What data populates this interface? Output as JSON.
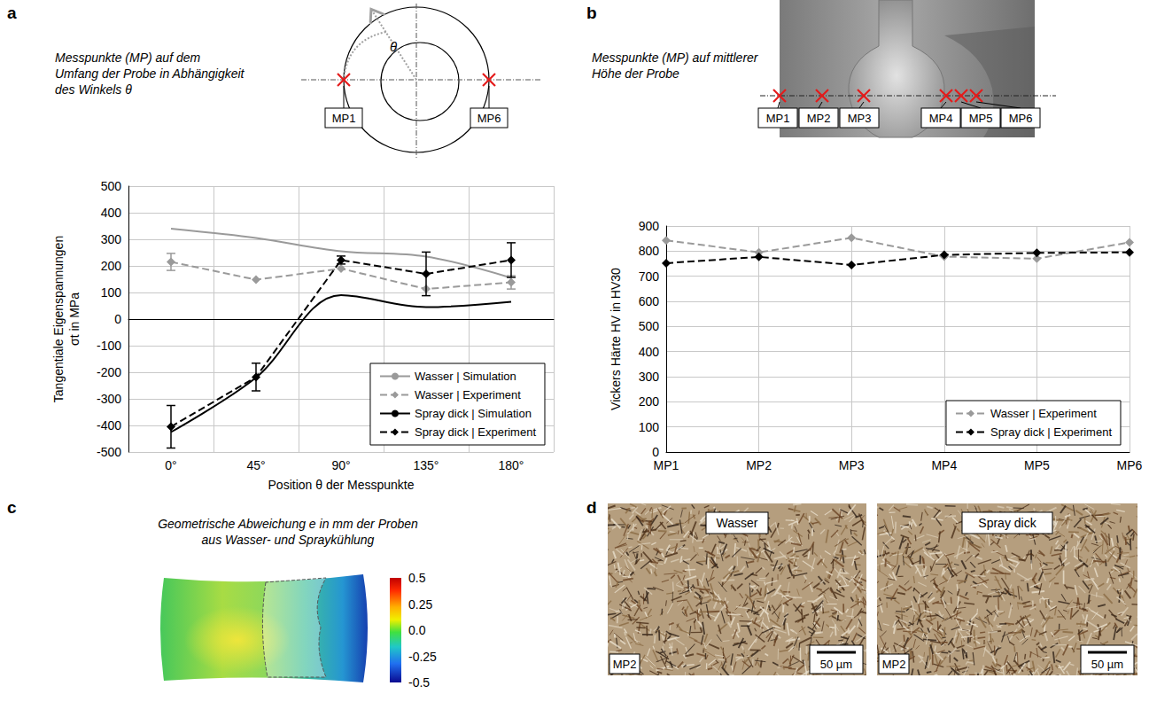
{
  "chart_data": [
    {
      "type": "line",
      "panel_label": "a",
      "caption": "Messpunkte (MP) auf dem Umfang der Probe in Abhängigkeit des Winkels θ",
      "diagram_labels": [
        "θ",
        "MP1",
        "MP6"
      ],
      "x_label": "Position θ der Messpunkte",
      "y_label": "Tangentiale Eigenspannungen σt in MPa",
      "categories": [
        "0°",
        "45°",
        "90°",
        "135°",
        "180°"
      ],
      "series": [
        {
          "name": "Wasser | Simulation",
          "color": "#9a9a9a",
          "marker": "none",
          "line_style": "solid",
          "values": [
            340,
            305,
            255,
            235,
            155
          ]
        },
        {
          "name": "Wasser | Experiment",
          "color": "#9a9a9a",
          "marker": "diamond",
          "line_style": "dashed",
          "values": [
            215,
            148,
            190,
            113,
            138
          ],
          "errors": [
            32,
            null,
            null,
            null,
            25
          ]
        },
        {
          "name": "Spray dick | Simulation",
          "color": "#000000",
          "marker": "none",
          "line_style": "solid",
          "values": [
            -425,
            -220,
            90,
            45,
            65
          ]
        },
        {
          "name": "Spray dick | Experiment",
          "color": "#000000",
          "marker": "diamond",
          "line_style": "dashed",
          "values": [
            -405,
            -218,
            222,
            170,
            222
          ],
          "errors": [
            80,
            52,
            15,
            82,
            65
          ]
        }
      ],
      "ylim": [
        -500,
        500
      ],
      "yticks": [
        -500,
        -400,
        -300,
        -200,
        -100,
        0,
        100,
        200,
        300,
        400,
        500
      ],
      "grid": true,
      "legend": "lower right"
    },
    {
      "type": "line",
      "panel_label": "b",
      "caption": "Messpunkte (MP) auf mittlerer Höhe der Probe",
      "diagram_labels": [
        "MP1",
        "MP2",
        "MP3",
        "MP4",
        "MP5",
        "MP6"
      ],
      "y_label": "Vickers Härte HV in HV30",
      "categories": [
        "MP1",
        "MP2",
        "MP3",
        "MP4",
        "MP5",
        "MP6"
      ],
      "series": [
        {
          "name": "Wasser | Experiment",
          "color": "#9a9a9a",
          "marker": "diamond",
          "line_style": "dashed",
          "values": [
            843,
            795,
            853,
            778,
            770,
            835
          ]
        },
        {
          "name": "Spray dick | Experiment",
          "color": "#000000",
          "marker": "diamond",
          "line_style": "dashed",
          "values": [
            752,
            777,
            745,
            785,
            793,
            795
          ]
        }
      ],
      "ylim": [
        0,
        900
      ],
      "yticks": [
        0,
        100,
        200,
        300,
        400,
        500,
        600,
        700,
        800,
        900
      ],
      "grid": true,
      "legend": "lower right"
    }
  ],
  "panel_c": {
    "panel_label": "c",
    "caption": "Geometrische Abweichung e in mm der Proben aus Wasser- und Spraykühlung",
    "colorbar": {
      "range": [
        -0.5,
        0.5
      ],
      "ticks": [
        0.5,
        0.25,
        {
          "value": 0,
          "label": "0.0"
        },
        -0.25,
        -0.5
      ]
    }
  },
  "panel_d": {
    "panel_label": "d",
    "images": [
      {
        "label": "Wasser",
        "point": "MP2",
        "scale_bar": "50 µm"
      },
      {
        "label": "Spray dick",
        "point": "MP2",
        "scale_bar": "50 µm"
      }
    ]
  }
}
